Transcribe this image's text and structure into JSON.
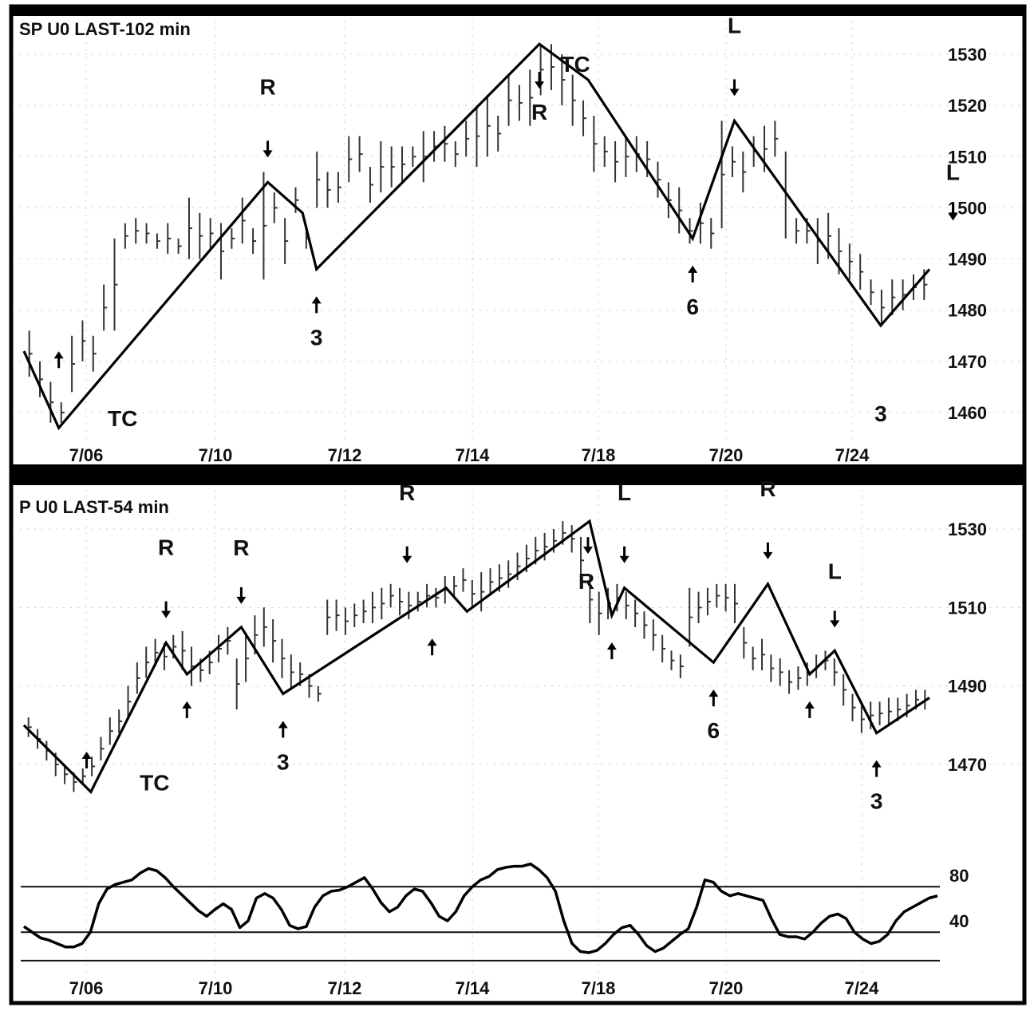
{
  "chart_data": [
    {
      "type": "bar",
      "title": "SP U0 LAST-102 min",
      "xlabels": [
        "7/06",
        "7/10",
        "7/12",
        "7/14",
        "7/18",
        "7/20",
        "7/24"
      ],
      "ylim": [
        1455,
        1535
      ],
      "yticks": [
        1530,
        1520,
        1510,
        1500,
        1490,
        1480,
        1470,
        1460
      ],
      "grid": true,
      "swing_line": {
        "x": [
          0,
          2.5,
          17.5,
          20,
          21,
          37,
          40.5,
          48,
          51,
          61.5,
          65
        ],
        "y": [
          1472,
          1457,
          1505,
          1499,
          1488,
          1532,
          1525,
          1494,
          1517,
          1477,
          1488
        ]
      },
      "bars": [
        [
          1476,
          1467
        ],
        [
          1470,
          1463
        ],
        [
          1466,
          1458
        ],
        [
          1462,
          1458
        ],
        [
          1475,
          1464
        ],
        [
          1478,
          1470
        ],
        [
          1475,
          1468
        ],
        [
          1485,
          1476
        ],
        [
          1494,
          1476
        ],
        [
          1497,
          1492
        ],
        [
          1498,
          1493
        ],
        [
          1497,
          1493
        ],
        [
          1495,
          1492
        ],
        [
          1497,
          1491
        ],
        [
          1494,
          1491
        ],
        [
          1502,
          1490
        ],
        [
          1499,
          1490
        ],
        [
          1498,
          1492
        ],
        [
          1497,
          1486
        ],
        [
          1496,
          1492
        ],
        [
          1502,
          1493
        ],
        [
          1496,
          1491
        ],
        [
          1507,
          1486
        ],
        [
          1503,
          1497
        ],
        [
          1498,
          1489
        ],
        [
          1504,
          1499
        ],
        [
          1496,
          1492
        ],
        [
          1511,
          1500
        ],
        [
          1507,
          1500
        ],
        [
          1507,
          1501
        ],
        [
          1514,
          1505
        ],
        [
          1514,
          1507
        ],
        [
          1508,
          1501
        ],
        [
          1513,
          1503
        ],
        [
          1512,
          1504
        ],
        [
          1512,
          1505
        ],
        [
          1512,
          1508
        ],
        [
          1515,
          1505
        ],
        [
          1515,
          1509
        ],
        [
          1516,
          1509
        ],
        [
          1513,
          1508
        ],
        [
          1517,
          1510
        ],
        [
          1520,
          1508
        ],
        [
          1522,
          1510
        ],
        [
          1518,
          1511
        ],
        [
          1526,
          1516
        ],
        [
          1524,
          1517
        ],
        [
          1527,
          1516
        ],
        [
          1532,
          1522
        ],
        [
          1532,
          1523
        ],
        [
          1530,
          1520
        ],
        [
          1526,
          1516
        ],
        [
          1521,
          1514
        ],
        [
          1518,
          1507
        ],
        [
          1514,
          1508
        ],
        [
          1513,
          1505
        ],
        [
          1514,
          1506
        ],
        [
          1514,
          1507
        ],
        [
          1513,
          1506
        ],
        [
          1509,
          1502
        ],
        [
          1505,
          1498
        ],
        [
          1504,
          1495
        ],
        [
          1498,
          1493
        ],
        [
          1501,
          1493
        ],
        [
          1498,
          1492
        ],
        [
          1517,
          1496
        ],
        [
          1512,
          1506
        ],
        [
          1511,
          1503
        ],
        [
          1514,
          1508
        ],
        [
          1516,
          1507
        ],
        [
          1517,
          1510
        ],
        [
          1511,
          1494
        ],
        [
          1498,
          1493
        ],
        [
          1498,
          1493
        ],
        [
          1498,
          1489
        ],
        [
          1499,
          1490
        ],
        [
          1496,
          1487
        ],
        [
          1493,
          1486
        ],
        [
          1491,
          1484
        ],
        [
          1486,
          1481
        ],
        [
          1484,
          1477
        ],
        [
          1486,
          1479
        ],
        [
          1486,
          1480
        ],
        [
          1487,
          1482
        ],
        [
          1488,
          1482
        ]
      ],
      "annotations": [
        {
          "text": "R",
          "x": 17.5,
          "price": 1505,
          "pos": "above",
          "arrow": "down"
        },
        {
          "text": "3",
          "x": 21,
          "price": 1488,
          "pos": "below",
          "arrow": "up"
        },
        {
          "text": "TC",
          "x": 2.5,
          "price": 1457,
          "pos": "right-low"
        },
        {
          "text": "",
          "x": 2.5,
          "price": 1457,
          "pos": "left-up-arrow"
        },
        {
          "text": "TC",
          "x": 37,
          "price": 1532,
          "pos": "right-top"
        },
        {
          "text": "R",
          "x": 37,
          "price": 1532,
          "pos": "below",
          "arrow": "down"
        },
        {
          "text": "L",
          "x": 51,
          "price": 1517,
          "pos": "above",
          "arrow": "down"
        },
        {
          "text": "6",
          "x": 48,
          "price": 1494,
          "pos": "below",
          "arrow": "up"
        },
        {
          "text": "3",
          "x": 61.5,
          "price": 1477,
          "pos": "below-far"
        },
        {
          "text": "L",
          "x": 66,
          "price": 1500,
          "pos": "side",
          "arrow": "down"
        }
      ]
    },
    {
      "type": "bar",
      "title": "P U0 LAST-54 min",
      "xlabels": [
        "7/06",
        "7/10",
        "7/12",
        "7/14",
        "7/18",
        "7/20",
        "7/24"
      ],
      "ylim": [
        1460,
        1535
      ],
      "yticks": [
        1530,
        1510,
        1490,
        1470
      ],
      "grid": true,
      "swing_line": {
        "x": [
          0,
          4.8,
          10.2,
          11.7,
          15.6,
          18.6,
          30.3,
          31.8,
          40.6,
          42.2,
          43.1,
          49.5,
          53.4,
          56.4,
          58.2,
          61.2,
          65
        ],
        "y": [
          1480,
          1463,
          1501,
          1493,
          1505,
          1488,
          1515,
          1509,
          1532,
          1508,
          1515,
          1496,
          1516,
          1493,
          1499,
          1478,
          1487
        ]
      },
      "bars": [
        [
          1482,
          1477
        ],
        [
          1479,
          1474
        ],
        [
          1476,
          1471
        ],
        [
          1473,
          1467
        ],
        [
          1470,
          1465
        ],
        [
          1468,
          1463
        ],
        [
          1469,
          1465
        ],
        [
          1472,
          1467
        ],
        [
          1477,
          1471
        ],
        [
          1482,
          1475
        ],
        [
          1484,
          1478
        ],
        [
          1490,
          1482
        ],
        [
          1496,
          1488
        ],
        [
          1500,
          1492
        ],
        [
          1502,
          1495
        ],
        [
          1501,
          1494
        ],
        [
          1503,
          1497
        ],
        [
          1504,
          1494
        ],
        [
          1500,
          1490
        ],
        [
          1497,
          1491
        ],
        [
          1499,
          1493
        ],
        [
          1503,
          1496
        ],
        [
          1505,
          1498
        ],
        [
          1497,
          1484
        ],
        [
          1503,
          1491
        ],
        [
          1508,
          1498
        ],
        [
          1510,
          1500
        ],
        [
          1507,
          1496
        ],
        [
          1502,
          1492
        ],
        [
          1498,
          1489
        ],
        [
          1496,
          1490
        ],
        [
          1493,
          1487
        ],
        [
          1490,
          1486
        ],
        [
          1512,
          1503
        ],
        [
          1512,
          1504
        ],
        [
          1510,
          1503
        ],
        [
          1511,
          1505
        ],
        [
          1512,
          1506
        ],
        [
          1514,
          1506
        ],
        [
          1515,
          1507
        ],
        [
          1516,
          1510
        ],
        [
          1515,
          1508
        ],
        [
          1514,
          1507
        ],
        [
          1514,
          1509
        ],
        [
          1516,
          1510
        ],
        [
          1515,
          1510
        ],
        [
          1518,
          1511
        ],
        [
          1518,
          1513
        ],
        [
          1520,
          1514
        ],
        [
          1517,
          1510
        ],
        [
          1519,
          1509
        ],
        [
          1520,
          1513
        ],
        [
          1521,
          1514
        ],
        [
          1522,
          1515
        ],
        [
          1524,
          1517
        ],
        [
          1526,
          1519
        ],
        [
          1528,
          1521
        ],
        [
          1529,
          1522
        ],
        [
          1530,
          1524
        ],
        [
          1532,
          1526
        ],
        [
          1531,
          1524
        ],
        [
          1528,
          1516
        ],
        [
          1518,
          1506
        ],
        [
          1514,
          1503
        ],
        [
          1515,
          1507
        ],
        [
          1516,
          1509
        ],
        [
          1514,
          1507
        ],
        [
          1512,
          1505
        ],
        [
          1509,
          1502
        ],
        [
          1507,
          1499
        ],
        [
          1503,
          1496
        ],
        [
          1499,
          1494
        ],
        [
          1498,
          1492
        ],
        [
          1515,
          1500
        ],
        [
          1514,
          1506
        ],
        [
          1515,
          1508
        ],
        [
          1516,
          1510
        ],
        [
          1516,
          1509
        ],
        [
          1516,
          1506
        ],
        [
          1505,
          1497
        ],
        [
          1500,
          1494
        ],
        [
          1502,
          1494
        ],
        [
          1498,
          1491
        ],
        [
          1497,
          1490
        ],
        [
          1494,
          1488
        ],
        [
          1495,
          1489
        ],
        [
          1496,
          1490
        ],
        [
          1498,
          1492
        ],
        [
          1499,
          1494
        ],
        [
          1497,
          1490
        ],
        [
          1493,
          1485
        ],
        [
          1488,
          1481
        ],
        [
          1485,
          1478
        ],
        [
          1486,
          1479
        ],
        [
          1486,
          1480
        ],
        [
          1487,
          1480
        ],
        [
          1487,
          1481
        ],
        [
          1488,
          1482
        ],
        [
          1489,
          1484
        ],
        [
          1489,
          1484
        ]
      ],
      "annotations": [
        {
          "text": "R",
          "x": 10.2,
          "price": 1501,
          "pos": "above",
          "arrow": "down"
        },
        {
          "text": "",
          "x": 11.7,
          "price": 1493,
          "pos": "below",
          "arrow": "up"
        },
        {
          "text": "R",
          "x": 15.6,
          "price": 1505,
          "pos": "above-high",
          "arrow": "down"
        },
        {
          "text": "3",
          "x": 18.6,
          "price": 1488,
          "pos": "below",
          "arrow": "up"
        },
        {
          "text": "R",
          "x": 27.5,
          "price": 1515,
          "pos": "above",
          "arrow": "down"
        },
        {
          "text": "",
          "x": 29.3,
          "price": 1509,
          "pos": "below",
          "arrow": "up"
        },
        {
          "text": "R",
          "x": 40.6,
          "price": 1532,
          "pos": "below-left",
          "arrow": "down"
        },
        {
          "text": "L",
          "x": 43.1,
          "price": 1515,
          "pos": "above",
          "arrow": "down"
        },
        {
          "text": "",
          "x": 42.2,
          "price": 1508,
          "pos": "below",
          "arrow": "up"
        },
        {
          "text": "6",
          "x": 49.5,
          "price": 1496,
          "pos": "below",
          "arrow": "up"
        },
        {
          "text": "R",
          "x": 53.4,
          "price": 1516,
          "pos": "above",
          "arrow": "down"
        },
        {
          "text": "",
          "x": 56.4,
          "price": 1493,
          "pos": "below",
          "arrow": "up"
        },
        {
          "text": "L",
          "x": 58.2,
          "price": 1499,
          "pos": "above-high",
          "arrow": "down"
        },
        {
          "text": "3",
          "x": 61.2,
          "price": 1478,
          "pos": "below",
          "arrow": "up"
        },
        {
          "text": "TC",
          "x": 4.8,
          "price": 1463,
          "pos": "right-low"
        },
        {
          "text": "",
          "x": 4.5,
          "price": 1470,
          "pos": "plain-up"
        }
      ]
    },
    {
      "type": "line",
      "title": "",
      "xlabels": [
        "7/06",
        "7/10",
        "7/12",
        "7/14",
        "7/18",
        "7/20",
        "7/24"
      ],
      "ylim": [
        0,
        100
      ],
      "yticks": [
        80,
        40
      ],
      "reference_lines": [
        70,
        30,
        5
      ],
      "values": [
        35,
        30,
        25,
        23,
        20,
        17,
        17,
        20,
        30,
        55,
        68,
        72,
        74,
        76,
        82,
        86,
        84,
        78,
        70,
        63,
        56,
        49,
        44,
        50,
        55,
        50,
        34,
        40,
        60,
        64,
        60,
        50,
        36,
        33,
        35,
        52,
        62,
        66,
        67,
        70,
        74,
        78,
        68,
        56,
        48,
        52,
        62,
        68,
        66,
        56,
        44,
        40,
        48,
        62,
        70,
        76,
        79,
        85,
        87,
        88,
        88,
        90,
        85,
        78,
        66,
        40,
        20,
        13,
        12,
        14,
        20,
        28,
        34,
        36,
        28,
        18,
        13,
        16,
        22,
        28,
        33,
        52,
        76,
        74,
        66,
        62,
        64,
        62,
        60,
        58,
        42,
        28,
        26,
        26,
        24,
        30,
        38,
        44,
        46,
        42,
        30,
        24,
        20,
        22,
        28,
        40,
        48,
        52,
        56,
        60,
        62
      ]
    }
  ]
}
